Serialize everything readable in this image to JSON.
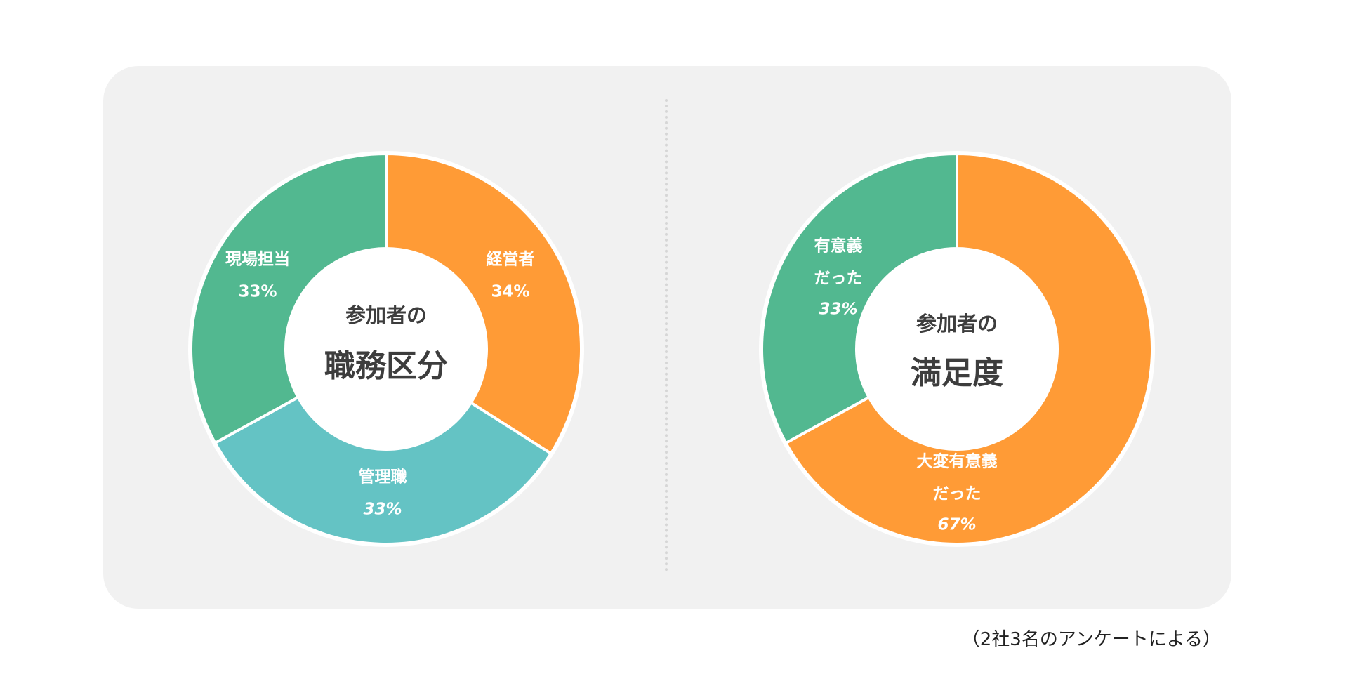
{
  "chart_data": [
    {
      "type": "pie",
      "donut": true,
      "center_title": [
        "参加者の",
        "職務区分"
      ],
      "slices": [
        {
          "label": "経営者",
          "value": 34,
          "value_label": "34%",
          "color": "#FF9B36",
          "italic": false
        },
        {
          "label": "管理職",
          "value": 33,
          "value_label": "33%",
          "color": "#64C3C4",
          "italic": true
        },
        {
          "label": "現場担当",
          "value": 33,
          "value_label": "33%",
          "color": "#52B890",
          "italic": false
        }
      ]
    },
    {
      "type": "pie",
      "donut": true,
      "center_title": [
        "参加者の",
        "満足度"
      ],
      "slices": [
        {
          "label": "大変有意義\nだった",
          "value": 67,
          "value_label": "67%",
          "color": "#FF9B36",
          "italic": true
        },
        {
          "label": "有意義\nだった",
          "value": 33,
          "value_label": "33%",
          "color": "#52B890",
          "italic": true
        }
      ]
    }
  ],
  "footnote": "（2社3名のアンケートによる）"
}
